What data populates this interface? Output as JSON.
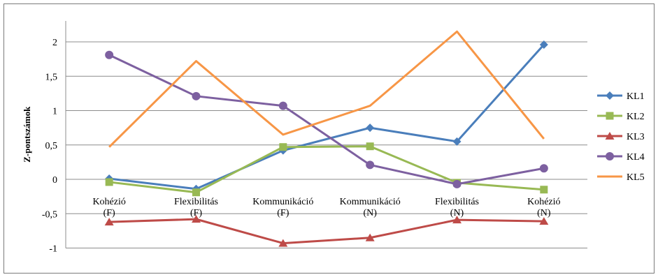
{
  "chart_data": {
    "type": "line",
    "ylabel": "Z-pontszámok",
    "ylim": [
      -1,
      2.2
    ],
    "yticks": [
      "2",
      "1,5",
      "1",
      "0,5",
      "0",
      "-0,5",
      "-1"
    ],
    "ytick_values": [
      2,
      1.5,
      1,
      0.5,
      0,
      -0.5,
      -1
    ],
    "categories": [
      [
        "Kohézió",
        "(F)"
      ],
      [
        "Flexibilitás",
        "(F)"
      ],
      [
        "Kommunikáció",
        "(F)"
      ],
      [
        "Kommunikáció",
        "(N)"
      ],
      [
        "Flexibilitás",
        "(N)"
      ],
      [
        "Kohézió",
        "(N)"
      ]
    ],
    "grid": true,
    "legend_position": "right",
    "series": [
      {
        "name": "KL1",
        "color": "#4a7ebb",
        "marker": "diamond",
        "values": [
          0.01,
          -0.14,
          0.42,
          0.75,
          0.55,
          1.96
        ]
      },
      {
        "name": "KL2",
        "color": "#98b954",
        "marker": "square",
        "values": [
          -0.04,
          -0.19,
          0.47,
          0.48,
          -0.05,
          -0.15
        ]
      },
      {
        "name": "KL3",
        "color": "#be4b48",
        "marker": "triangle",
        "values": [
          -0.62,
          -0.58,
          -0.93,
          -0.85,
          -0.59,
          -0.61
        ]
      },
      {
        "name": "KL4",
        "color": "#7d60a0",
        "marker": "circle",
        "values": [
          1.81,
          1.21,
          1.07,
          0.21,
          -0.07,
          0.16
        ]
      },
      {
        "name": "KL5",
        "color": "#f79646",
        "marker": "none",
        "values": [
          0.47,
          1.72,
          0.65,
          1.07,
          2.15,
          0.59
        ]
      }
    ]
  }
}
